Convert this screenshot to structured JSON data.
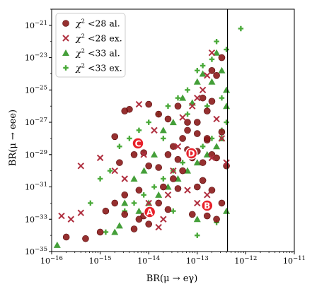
{
  "chart_data": {
    "type": "scatter",
    "xlabel": "BR(μ → eγ)",
    "ylabel": "BR(μ → eee)",
    "x_scale": "log",
    "y_scale": "log",
    "xlim": [
      1e-16,
      1e-11
    ],
    "ylim": [
      1e-35,
      1e-20
    ],
    "x_ticks": [
      {
        "value": 1e-16,
        "label": "10−16"
      },
      {
        "value": 1e-15,
        "label": "10−15"
      },
      {
        "value": 1e-14,
        "label": "10−14"
      },
      {
        "value": 1e-13,
        "label": "10−13"
      },
      {
        "value": 1e-12,
        "label": "10−12"
      },
      {
        "value": 1e-11,
        "label": "10−11"
      }
    ],
    "y_ticks": [
      {
        "value": 1e-35,
        "label": "10−35"
      },
      {
        "value": 1e-33,
        "label": "10−33"
      },
      {
        "value": 1e-31,
        "label": "10−31"
      },
      {
        "value": 1e-29,
        "label": "10−29"
      },
      {
        "value": 1e-27,
        "label": "10−27"
      },
      {
        "value": 1e-25,
        "label": "10−25"
      },
      {
        "value": 1e-23,
        "label": "10−23"
      },
      {
        "value": 1e-21,
        "label": "10−21"
      }
    ],
    "grid": false,
    "legend_position": "top-left",
    "vertical_line": {
      "x": 4.2e-13
    },
    "series": [
      {
        "name": "χ2 <28 al.",
        "marker": "circle",
        "color": "#8b1a1a",
        "points": [
          [
            5e-16,
            6.3e-35
          ],
          [
            2e-16,
            7.9e-35
          ],
          [
            3.2e-15,
            2e-33
          ],
          [
            5e-15,
            2.5e-34
          ],
          [
            6.3e-15,
            1e-33
          ],
          [
            1e-14,
            5e-34
          ],
          [
            1.3e-15,
            3.2e-33
          ],
          [
            2e-15,
            1e-32
          ],
          [
            1e-15,
            1.6e-34
          ],
          [
            7.9e-15,
            1.6e-33
          ],
          [
            3.2e-15,
            3.2e-32
          ],
          [
            6.3e-15,
            6.3e-32
          ],
          [
            1.6e-14,
            1e-32
          ],
          [
            2e-14,
            1e-31
          ],
          [
            2.5e-14,
            4e-33
          ],
          [
            1e-14,
            2e-30
          ],
          [
            1.6e-14,
            1.6e-30
          ],
          [
            3.2e-14,
            3.2e-31
          ],
          [
            2.5e-14,
            1e-29
          ],
          [
            4e-14,
            5e-30
          ],
          [
            5e-14,
            1e-30
          ],
          [
            6.3e-14,
            2e-29
          ],
          [
            7.9e-14,
            6.3e-30
          ],
          [
            1e-13,
            1.6e-29
          ],
          [
            1e-13,
            1e-31
          ],
          [
            1.3e-13,
            3.2e-30
          ],
          [
            1.6e-13,
            7.9e-29
          ],
          [
            2e-13,
            1e-29
          ],
          [
            2.5e-13,
            6.3e-30
          ],
          [
            3.2e-13,
            2.5e-28
          ],
          [
            4e-13,
            2e-30
          ],
          [
            6.3e-14,
            3.2e-28
          ],
          [
            1e-13,
            1e-27
          ],
          [
            1.6e-13,
            5e-27
          ],
          [
            2e-13,
            2e-26
          ],
          [
            2.5e-13,
            7.9e-25
          ],
          [
            3.2e-13,
            1e-23
          ],
          [
            2e-13,
            1.6e-24
          ],
          [
            1.3e-13,
            3.2e-26
          ],
          [
            4e-14,
            1e-26
          ],
          [
            2.5e-14,
            1.6e-27
          ],
          [
            1.6e-14,
            3.2e-27
          ],
          [
            1e-14,
            1.3e-26
          ],
          [
            4e-15,
            6.3e-27
          ],
          [
            3.2e-15,
            5e-27
          ],
          [
            2e-15,
            1.3e-28
          ],
          [
            2.5e-15,
            3.2e-30
          ],
          [
            5e-15,
            1e-29
          ],
          [
            7.9e-15,
            1.3e-29
          ],
          [
            5e-14,
            1e-28
          ],
          [
            1e-13,
            2e-28
          ],
          [
            1.6e-13,
            1e-28
          ],
          [
            1.3e-13,
            2.5e-31
          ],
          [
            2e-13,
            6.3e-32
          ],
          [
            3.2e-13,
            1e-32
          ],
          [
            7.9e-14,
            2e-33
          ],
          [
            1.6e-13,
            1.6e-33
          ],
          [
            4e-14,
            7.9e-32
          ],
          [
            2.5e-13,
            1e-33
          ],
          [
            6.3e-14,
            1e-27
          ],
          [
            3.2e-14,
            3.2e-29
          ]
        ]
      },
      {
        "name": "χ2 <28 ex.",
        "marker": "x",
        "color": "#b03040",
        "points": [
          [
            1.6e-16,
            1.6e-33
          ],
          [
            2.5e-16,
            1e-33
          ],
          [
            4e-16,
            2.5e-33
          ],
          [
            4e-16,
            2e-30
          ],
          [
            1e-15,
            6.3e-30
          ],
          [
            2e-15,
            1e-30
          ],
          [
            3.2e-15,
            3.2e-31
          ],
          [
            6.3e-15,
            1.3e-26
          ],
          [
            7.9e-15,
            1e-29
          ],
          [
            1.3e-14,
            3.2e-28
          ],
          [
            1.6e-14,
            3.2e-34
          ],
          [
            2e-14,
            1e-33
          ],
          [
            2.5e-14,
            3.2e-32
          ],
          [
            3.2e-14,
            1e-30
          ],
          [
            5e-14,
            2e-27
          ],
          [
            7.9e-14,
            1e-26
          ],
          [
            1e-13,
            3.2e-26
          ],
          [
            1.3e-13,
            1e-25
          ],
          [
            1.6e-13,
            7.9e-25
          ],
          [
            2e-13,
            2e-23
          ],
          [
            2.5e-13,
            1.6e-27
          ],
          [
            3.2e-13,
            1e-28
          ],
          [
            4e-13,
            3.2e-30
          ],
          [
            6.3e-14,
            6.3e-32
          ],
          [
            1e-13,
            1e-32
          ],
          [
            1.6e-13,
            3.2e-32
          ],
          [
            1e-14,
            1e-32
          ],
          [
            4e-14,
            3.2e-29
          ],
          [
            2e-13,
            6.3e-30
          ]
        ]
      },
      {
        "name": "χ2 <33 al.",
        "marker": "triangle",
        "color": "#3a9a2e",
        "points": [
          [
            1.3e-16,
            2.5e-35
          ],
          [
            2e-15,
            1.6e-34
          ],
          [
            2.5e-15,
            4e-34
          ],
          [
            6.3e-15,
            3.2e-33
          ],
          [
            1e-14,
            1e-32
          ],
          [
            1.6e-14,
            3.2e-32
          ],
          [
            2.5e-14,
            1e-31
          ],
          [
            4e-14,
            3.2e-31
          ],
          [
            6.3e-14,
            1e-30
          ],
          [
            1e-13,
            3.2e-30
          ],
          [
            1.6e-13,
            1e-29
          ],
          [
            2.5e-13,
            3.2e-29
          ],
          [
            3.2e-13,
            1e-28
          ],
          [
            4e-13,
            1e-26
          ],
          [
            4e-13,
            1e-25
          ],
          [
            3.2e-13,
            1.6e-24
          ],
          [
            2e-13,
            3.2e-25
          ],
          [
            1.3e-13,
            1e-24
          ],
          [
            1e-13,
            3.2e-25
          ],
          [
            7.9e-14,
            1.6e-26
          ],
          [
            5e-14,
            3.2e-26
          ],
          [
            3.2e-14,
            1e-27
          ],
          [
            2e-14,
            3.2e-28
          ],
          [
            1.3e-14,
            1e-29
          ],
          [
            8e-15,
            1e-30
          ],
          [
            5e-15,
            3.2e-31
          ],
          [
            3.2e-15,
            1e-32
          ],
          [
            4e-13,
            3.2e-33
          ],
          [
            1e-13,
            1e-33
          ],
          [
            2.5e-13,
            2e-23
          ]
        ]
      },
      {
        "name": "χ2 <33 ex.",
        "marker": "plus",
        "color": "#4aaa3a",
        "points": [
          [
            7.9e-13,
            6.3e-22
          ],
          [
            4e-13,
            3.2e-23
          ],
          [
            2.5e-13,
            1e-22
          ],
          [
            2e-13,
            7.9e-24
          ],
          [
            1.3e-13,
            3.2e-24
          ],
          [
            1e-13,
            1.6e-24
          ],
          [
            6.3e-14,
            1e-25
          ],
          [
            4e-14,
            3.2e-26
          ],
          [
            2.5e-14,
            1e-26
          ],
          [
            1.6e-14,
            3.2e-27
          ],
          [
            1e-14,
            1e-27
          ],
          [
            6.3e-15,
            3.2e-28
          ],
          [
            4e-15,
            1e-28
          ],
          [
            2.5e-15,
            3.2e-29
          ],
          [
            1.6e-15,
            1e-30
          ],
          [
            1e-15,
            3.2e-31
          ],
          [
            6.3e-16,
            1e-32
          ],
          [
            1.3e-15,
            1.6e-34
          ],
          [
            3.2e-15,
            3.2e-33
          ],
          [
            5e-15,
            1e-32
          ],
          [
            7.9e-15,
            3.2e-32
          ],
          [
            1.3e-14,
            1e-31
          ],
          [
            2e-14,
            3.2e-31
          ],
          [
            3.2e-14,
            1e-30
          ],
          [
            5e-14,
            3.2e-30
          ],
          [
            7.9e-14,
            1e-29
          ],
          [
            1.3e-13,
            3.2e-29
          ],
          [
            2e-13,
            1e-28
          ],
          [
            3.2e-13,
            3.2e-28
          ],
          [
            4e-13,
            1e-27
          ],
          [
            3.2e-13,
            3.2e-26
          ],
          [
            1.6e-13,
            1e-26
          ],
          [
            6.3e-14,
            3.2e-27
          ],
          [
            2e-14,
            1e-28
          ],
          [
            3.2e-14,
            3.2e-33
          ],
          [
            1e-13,
            1e-34
          ],
          [
            2.5e-13,
            6.3e-34
          ]
        ]
      }
    ],
    "annotations": [
      {
        "label": "A",
        "x": 1.05e-14,
        "y": 2.8e-33
      },
      {
        "label": "B",
        "x": 1.6e-13,
        "y": 7e-33
      },
      {
        "label": "C",
        "x": 6e-15,
        "y": 5e-29
      },
      {
        "label": "D",
        "x": 7.6e-14,
        "y": 1.2e-29
      }
    ]
  }
}
